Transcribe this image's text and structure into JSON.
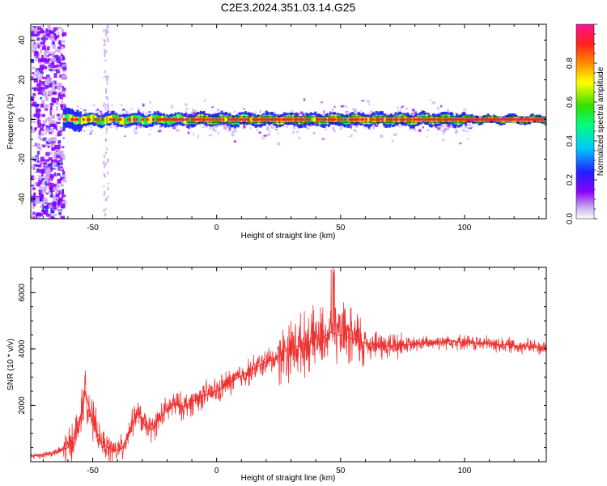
{
  "figure": {
    "title": "C2E3.2024.351.03.14.G25"
  },
  "chart_data": [
    {
      "type": "heatmap",
      "xlabel": "Height of straight line (km)",
      "ylabel": "Frequency (Hz)",
      "xlim": [
        -75,
        133
      ],
      "ylim": [
        -50,
        48
      ],
      "x_ticks": [
        "-50",
        "0",
        "50",
        "100"
      ],
      "y_ticks": [
        "-40",
        "-20",
        "0",
        "20",
        "40"
      ],
      "colorbar": {
        "label": "Normalized spectral amplitude",
        "range": [
          0,
          1
        ],
        "ticks": [
          "0.0",
          "0.2",
          "0.4",
          "0.6",
          "0.8"
        ],
        "colors": [
          "#ffffff",
          "#c9a6f0",
          "#8a00ff",
          "#2020ff",
          "#00c8ff",
          "#00ff7f",
          "#30e000",
          "#ffff00",
          "#ff8c00",
          "#ff2020",
          "#ff1493"
        ]
      },
      "description_points": {
        "carrier_frequency_hz": 0,
        "noisy_region_x": [
          -75,
          -62
        ],
        "secondary_noise_x": -45
      }
    },
    {
      "type": "line",
      "xlabel": "Height of straight line (km)",
      "ylabel": "SNR (10 * v/v)",
      "xlim": [
        -75,
        133
      ],
      "ylim": [
        0,
        6900
      ],
      "x_ticks": [
        "-50",
        "0",
        "50",
        "100"
      ],
      "y_ticks": [
        "2000",
        "4000",
        "6000"
      ],
      "color": "#ee3333",
      "x": [
        -75,
        -70,
        -65,
        -60,
        -56,
        -53,
        -50,
        -47,
        -44,
        -41,
        -38,
        -35,
        -32,
        -29,
        -26,
        -23,
        -20,
        -17,
        -14,
        -11,
        -8,
        -5,
        -2,
        1,
        4,
        7,
        10,
        13,
        16,
        19,
        22,
        25,
        28,
        31,
        34,
        37,
        40,
        43,
        46,
        49,
        52,
        55,
        58,
        61,
        64,
        67,
        70,
        73,
        76,
        79,
        82,
        85,
        88,
        91,
        94,
        97,
        100,
        103,
        106,
        109,
        112,
        115,
        118,
        121,
        124,
        127,
        130,
        133
      ],
      "y": [
        200,
        250,
        330,
        500,
        1100,
        2500,
        1400,
        750,
        500,
        380,
        480,
        1150,
        1750,
        1300,
        1150,
        1550,
        1850,
        2050,
        1950,
        2050,
        2250,
        2350,
        2450,
        2550,
        2750,
        2900,
        3050,
        3200,
        3350,
        3500,
        3600,
        3750,
        3950,
        4050,
        4150,
        4250,
        4350,
        4400,
        4600,
        4500,
        4450,
        4350,
        4250,
        4200,
        4150,
        4100,
        4100,
        4150,
        4150,
        4150,
        4200,
        4200,
        4250,
        4250,
        4300,
        4250,
        4250,
        4200,
        4200,
        4200,
        4150,
        4150,
        4150,
        4100,
        4100,
        4100,
        4050,
        4050
      ]
    }
  ]
}
